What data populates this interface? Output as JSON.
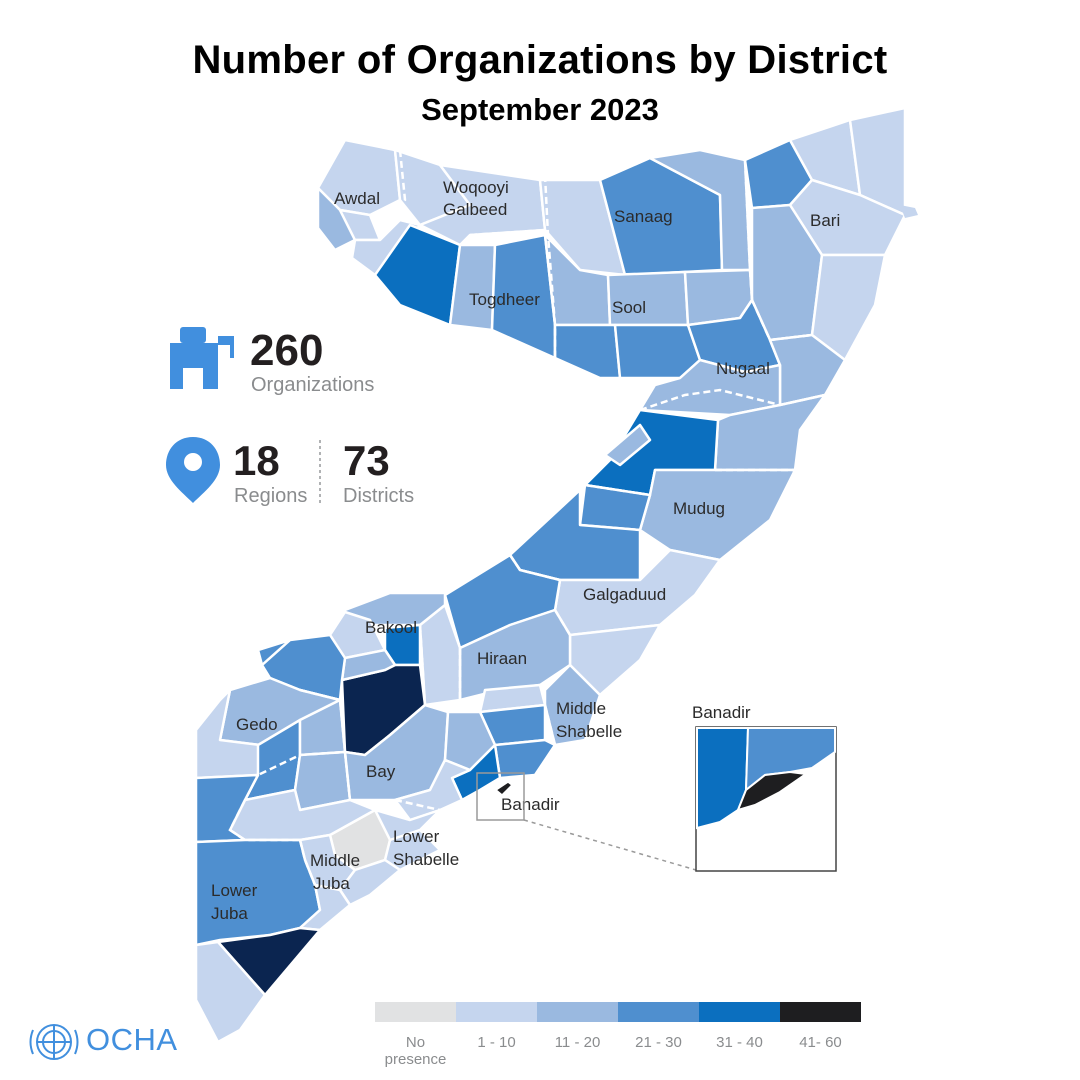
{
  "title": "Number of Organizations by District",
  "subtitle": "September 2023",
  "stats": {
    "organizations_value": "260",
    "organizations_label": "Organizations",
    "regions_value": "18",
    "regions_label": "Regions",
    "districts_value": "73",
    "districts_label": "Districts"
  },
  "regions": {
    "awdal": "Awdal",
    "woqooyi1": "Woqooyi",
    "woqooyi2": "Galbeed",
    "sanaag": "Sanaag",
    "bari": "Bari",
    "togdheer": "Togdheer",
    "sool": "Sool",
    "nugaal": "Nugaal",
    "mudug": "Mudug",
    "galgaduud": "Galgaduud",
    "bakool": "Bakool",
    "hiraan": "Hiraan",
    "gedo": "Gedo",
    "middle_shabelle1": "Middle",
    "middle_shabelle2": "Shabelle",
    "bay": "Bay",
    "banadir": "Banadir",
    "lower_shabelle1": "Lower",
    "lower_shabelle2": "Shabelle",
    "middle_juba1": "Middle",
    "middle_juba2": "Juba",
    "lower_juba1": "Lower",
    "lower_juba2": "Juba"
  },
  "inset": {
    "label": "Banadir"
  },
  "legend": {
    "items": [
      {
        "label": "No presence",
        "color": "#e1e2e3"
      },
      {
        "label": "1 - 10",
        "color": "#c5d5ee"
      },
      {
        "label": "11 - 20",
        "color": "#9ab9e0"
      },
      {
        "label": "21 - 30",
        "color": "#4f8fcf"
      },
      {
        "label": "31 - 40",
        "color": "#0b6fbf"
      },
      {
        "label": "41- 60",
        "color": "#1e1e20"
      }
    ]
  },
  "extra_color": "#0b2550",
  "logo": {
    "text": "OCHA",
    "icon": "un-emblem-icon",
    "color": "#418fde"
  }
}
